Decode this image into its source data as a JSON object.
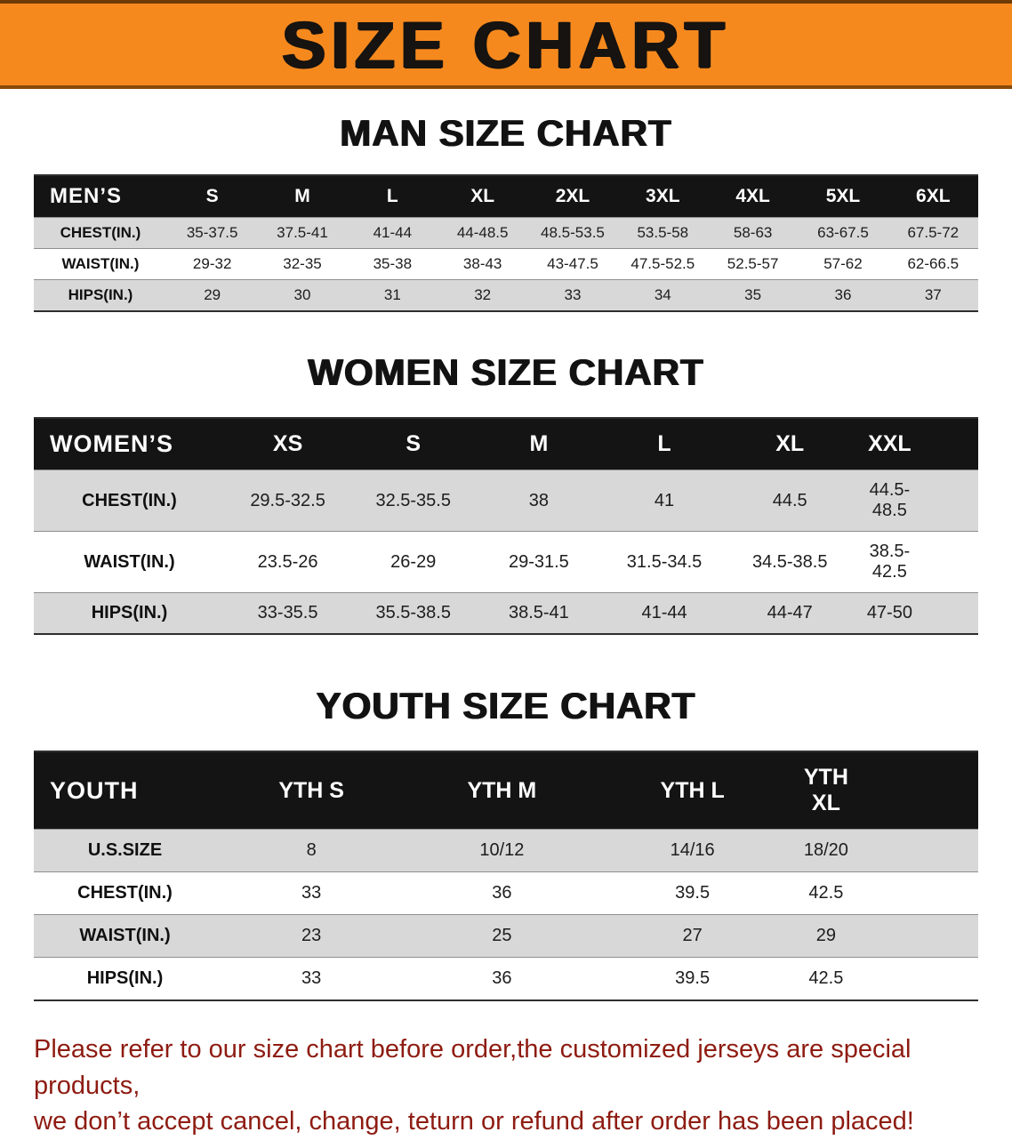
{
  "banner": {
    "title": "SIZE CHART",
    "bg_color": "#f6891e",
    "text_color": "#161310"
  },
  "colors": {
    "table_header_bg": "#141414",
    "table_header_text": "#ffffff",
    "row_alt_gray": "#d8d8d8",
    "row_white": "#ffffff",
    "disclaimer_red": "#8e1c12"
  },
  "chart_data": [
    {
      "type": "table",
      "title": "MAN SIZE CHART",
      "header": [
        "MEN’S",
        "S",
        "M",
        "L",
        "XL",
        "2XL",
        "3XL",
        "4XL",
        "5XL",
        "6XL"
      ],
      "rows": [
        [
          "CHEST(IN.)",
          "35-37.5",
          "37.5-41",
          "41-44",
          "44-48.5",
          "48.5-53.5",
          "53.5-58",
          "58-63",
          "63-67.5",
          "67.5-72"
        ],
        [
          "WAIST(IN.)",
          "29-32",
          "32-35",
          "35-38",
          "38-43",
          "43-47.5",
          "47.5-52.5",
          "52.5-57",
          "57-62",
          "62-66.5"
        ],
        [
          "HIPS(IN.)",
          "29",
          "30",
          "31",
          "32",
          "33",
          "34",
          "35",
          "36",
          "37"
        ]
      ]
    },
    {
      "type": "table",
      "title": "WOMEN SIZE CHART",
      "header": [
        "WOMEN’S",
        "XS",
        "S",
        "M",
        "L",
        "XL",
        "XXL"
      ],
      "rows": [
        [
          "CHEST(IN.)",
          "29.5-32.5",
          "32.5-35.5",
          "38",
          "41",
          "44.5",
          "44.5-48.5"
        ],
        [
          "WAIST(IN.)",
          "23.5-26",
          "26-29",
          "29-31.5",
          "31.5-34.5",
          "34.5-38.5",
          "38.5-42.5"
        ],
        [
          "HIPS(IN.)",
          "33-35.5",
          "35.5-38.5",
          "38.5-41",
          "41-44",
          "44-47",
          "47-50"
        ]
      ]
    },
    {
      "type": "table",
      "title": "YOUTH SIZE CHART",
      "header": [
        "YOUTH",
        "YTH S",
        "YTH M",
        "YTH L",
        "YTH XL"
      ],
      "rows": [
        [
          "U.S.SIZE",
          "8",
          "10/12",
          "14/16",
          "18/20"
        ],
        [
          "CHEST(IN.)",
          "33",
          "36",
          "39.5",
          "42.5"
        ],
        [
          "WAIST(IN.)",
          "23",
          "25",
          "27",
          "29"
        ],
        [
          "HIPS(IN.)",
          "33",
          "36",
          "39.5",
          "42.5"
        ]
      ]
    }
  ],
  "footer": {
    "line1": "Please refer to our size chart before order,the customized jerseys are special products,",
    "line2": "we don’t accept cancel, change, teturn or refund after order has been placed!"
  }
}
